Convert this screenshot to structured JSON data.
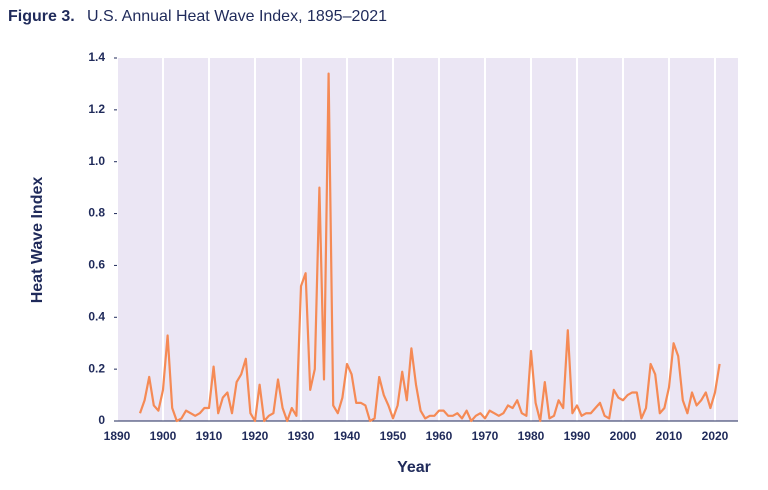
{
  "chart_data": {
    "type": "line",
    "figure_label": "Figure 3.",
    "title": "U.S. Annual Heat Wave Index, 1895–2021",
    "xlabel": "Year",
    "ylabel": "Heat Wave Index",
    "color": "#f58a55",
    "grid": true,
    "xlim": [
      1890,
      2025
    ],
    "ylim": [
      0,
      1.4
    ],
    "xticks": [
      1890,
      1900,
      1910,
      1920,
      1930,
      1940,
      1950,
      1960,
      1970,
      1980,
      1990,
      2000,
      2010,
      2020
    ],
    "yticks": [
      0,
      0.2,
      0.4,
      0.6,
      0.8,
      {
        "value": 1,
        "label": "1.0"
      },
      1.2,
      1.4
    ],
    "x": [
      1895,
      1896,
      1897,
      1898,
      1899,
      1900,
      1901,
      1902,
      1903,
      1904,
      1905,
      1906,
      1907,
      1908,
      1909,
      1910,
      1911,
      1912,
      1913,
      1914,
      1915,
      1916,
      1917,
      1918,
      1919,
      1920,
      1921,
      1922,
      1923,
      1924,
      1925,
      1926,
      1927,
      1928,
      1929,
      1930,
      1931,
      1932,
      1933,
      1934,
      1935,
      1936,
      1937,
      1938,
      1939,
      1940,
      1941,
      1942,
      1943,
      1944,
      1945,
      1946,
      1947,
      1948,
      1949,
      1950,
      1951,
      1952,
      1953,
      1954,
      1955,
      1956,
      1957,
      1958,
      1959,
      1960,
      1961,
      1962,
      1963,
      1964,
      1965,
      1966,
      1967,
      1968,
      1969,
      1970,
      1971,
      1972,
      1973,
      1974,
      1975,
      1976,
      1977,
      1978,
      1979,
      1980,
      1981,
      1982,
      1983,
      1984,
      1985,
      1986,
      1987,
      1988,
      1989,
      1990,
      1991,
      1992,
      1993,
      1994,
      1995,
      1996,
      1997,
      1998,
      1999,
      2000,
      2001,
      2002,
      2003,
      2004,
      2005,
      2006,
      2007,
      2008,
      2009,
      2010,
      2011,
      2012,
      2013,
      2014,
      2015,
      2016,
      2017,
      2018,
      2019,
      2020,
      2021
    ],
    "values": [
      0.03,
      0.08,
      0.17,
      0.06,
      0.04,
      0.12,
      0.33,
      0.05,
      0.0,
      0.01,
      0.04,
      0.03,
      0.02,
      0.03,
      0.05,
      0.05,
      0.21,
      0.03,
      0.09,
      0.11,
      0.03,
      0.15,
      0.18,
      0.24,
      0.03,
      0.0,
      0.14,
      0.0,
      0.02,
      0.03,
      0.16,
      0.05,
      0.0,
      0.05,
      0.02,
      0.52,
      0.57,
      0.12,
      0.2,
      0.9,
      0.16,
      1.34,
      0.06,
      0.03,
      0.09,
      0.22,
      0.18,
      0.07,
      0.07,
      0.06,
      0.0,
      0.01,
      0.17,
      0.1,
      0.06,
      0.01,
      0.06,
      0.19,
      0.08,
      0.28,
      0.14,
      0.04,
      0.01,
      0.02,
      0.02,
      0.04,
      0.04,
      0.02,
      0.02,
      0.03,
      0.01,
      0.04,
      0.0,
      0.02,
      0.03,
      0.01,
      0.04,
      0.03,
      0.02,
      0.03,
      0.06,
      0.05,
      0.08,
      0.03,
      0.02,
      0.27,
      0.07,
      0.0,
      0.15,
      0.01,
      0.02,
      0.08,
      0.05,
      0.35,
      0.03,
      0.06,
      0.02,
      0.03,
      0.03,
      0.05,
      0.07,
      0.02,
      0.01,
      0.12,
      0.09,
      0.08,
      0.1,
      0.11,
      0.11,
      0.01,
      0.05,
      0.22,
      0.18,
      0.03,
      0.05,
      0.13,
      0.3,
      0.25,
      0.08,
      0.03,
      0.11,
      0.06,
      0.08,
      0.11,
      0.05,
      0.11,
      0.22
    ]
  }
}
